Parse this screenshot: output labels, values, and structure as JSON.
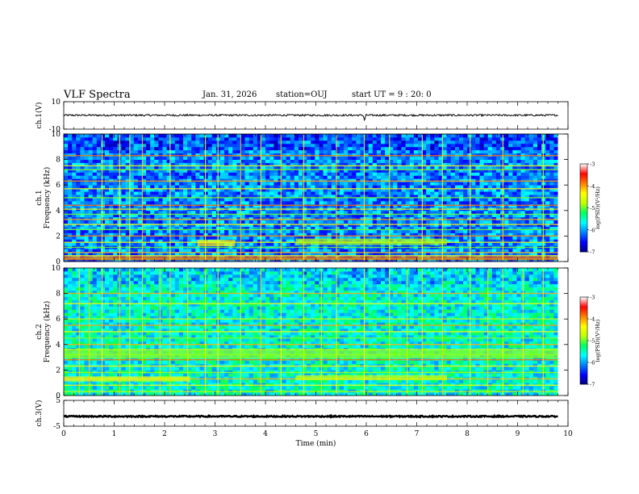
{
  "header": {
    "title": "VLF Spectra",
    "date": "Jan. 31, 2026",
    "station": "station=OUJ",
    "start_ut": "start  UT =   9 : 20: 0"
  },
  "chart_data": [
    {
      "type": "line",
      "panel": "ch1-waveform",
      "ylabel": "ch.1(V)",
      "ylim": [
        -10,
        10
      ],
      "y_tick_labels": [
        "10",
        "-10"
      ],
      "xlim": [
        0,
        10
      ],
      "trace_level": 0,
      "trace_range": [
        -0.5,
        0.8
      ],
      "spike_at_min": 5.97,
      "trace_end_min": 9.8,
      "color": "#000000"
    },
    {
      "type": "heatmap",
      "panel": "ch1-spectrogram",
      "ylabel": "Frequency  (kHz)",
      "channel_label": "ch.1",
      "ylim": [
        0,
        10
      ],
      "y_tick_labels": [
        "0",
        "2",
        "4",
        "6",
        "8",
        "10"
      ],
      "xlim": [
        0,
        10
      ],
      "data_end_min": 9.8,
      "colorbar": {
        "label": "log(PSD)(V²/Hz)",
        "range": [
          -7,
          -3
        ],
        "tick_labels": [
          "-3",
          "-4",
          "-5",
          "-6",
          "-7"
        ]
      },
      "background_level": -6.1,
      "bands_khz": [
        0.2,
        0.45,
        0.7,
        1.1,
        1.5,
        2.0,
        2.5,
        2.9,
        3.3,
        3.7,
        4.1,
        4.4,
        5.0,
        5.7,
        6.3,
        7.2,
        7.5,
        8.3
      ],
      "emission_patches": [
        {
          "t": [
            2.65,
            3.4
          ],
          "f": [
            1.2,
            1.7
          ],
          "level": -4.3
        },
        {
          "t": [
            4.6,
            7.6
          ],
          "f": [
            1.3,
            1.8
          ],
          "level": -4.8
        },
        {
          "t": [
            0.0,
            9.8
          ],
          "f": [
            0.1,
            0.4
          ],
          "level": -3.8
        }
      ],
      "vertical_lines_min": [
        0.75,
        1.1,
        1.3,
        1.55,
        2.1,
        2.8,
        3.05,
        3.5,
        3.9,
        4.3,
        4.75,
        5.4,
        5.95,
        6.45,
        7.1,
        7.5,
        8.05,
        8.7,
        9.5
      ]
    },
    {
      "type": "heatmap",
      "panel": "ch2-spectrogram",
      "ylabel": "Frequency  (kHz)",
      "channel_label": "ch.2",
      "ylim": [
        0,
        10
      ],
      "y_tick_labels": [
        "0",
        "2",
        "4",
        "6",
        "8",
        "10"
      ],
      "xlim": [
        0,
        10
      ],
      "data_end_min": 9.8,
      "colorbar": {
        "label": "log(PSD)(V²/Hz)",
        "range": [
          -7,
          -3
        ],
        "tick_labels": [
          "-3",
          "-4",
          "-5",
          "-6",
          "-7"
        ]
      },
      "background_level": -5.6,
      "bands_khz": [
        0.3,
        0.8,
        1.3,
        1.8,
        2.3,
        2.8,
        3.2,
        3.6,
        4.0,
        4.5,
        5.0,
        5.5,
        6.0,
        7.2,
        8.0
      ],
      "emission_patches": [
        {
          "t": [
            0.0,
            9.8
          ],
          "f": [
            2.9,
            3.6
          ],
          "level": -4.9
        },
        {
          "t": [
            0.0,
            2.5
          ],
          "f": [
            1.1,
            1.5
          ],
          "level": -4.4
        },
        {
          "t": [
            4.6,
            7.6
          ],
          "f": [
            1.2,
            1.6
          ],
          "level": -4.6
        }
      ],
      "vertical_lines_min": [
        0.3,
        0.5,
        0.75,
        1.1,
        1.3,
        1.55,
        1.9,
        2.1,
        2.45,
        2.8,
        3.05,
        3.5,
        3.9,
        4.3,
        4.75,
        5.1,
        5.4,
        5.95,
        6.45,
        6.8,
        7.1,
        7.5,
        8.05,
        8.4,
        8.7,
        9.1,
        9.5
      ]
    },
    {
      "type": "line",
      "panel": "ch3-waveform",
      "ylabel": "ch.3(V)",
      "ylim": [
        -5,
        5
      ],
      "y_tick_labels": [
        "5",
        "-5"
      ],
      "xlim": [
        0,
        10
      ],
      "trace_level": -1.2,
      "trace_range": [
        -1.45,
        -0.95
      ],
      "trace_end_min": 9.8,
      "color": "#000000"
    }
  ],
  "x_axis": {
    "label": "Time  (min)",
    "tick_labels": [
      "0",
      "1",
      "2",
      "3",
      "4",
      "5",
      "6",
      "7",
      "8",
      "9",
      "10"
    ]
  },
  "colors": {
    "colormap": [
      "#000080",
      "#0000ff",
      "#0080ff",
      "#00ffff",
      "#00ff60",
      "#c0ff00",
      "#ffff00",
      "#ff8000",
      "#ff0000",
      "#ffffff"
    ]
  }
}
